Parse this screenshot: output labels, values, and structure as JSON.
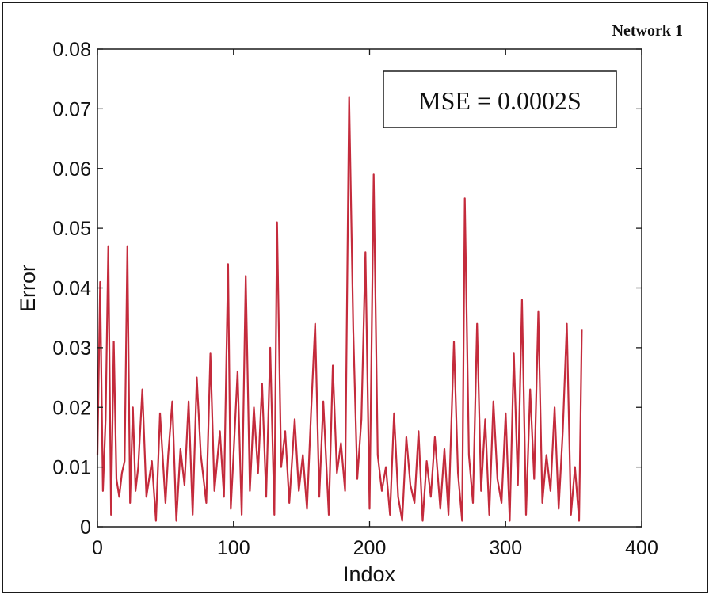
{
  "figure": {
    "label": "Network 1"
  },
  "chart_data": {
    "type": "line",
    "title": "",
    "xlabel": "Indox",
    "ylabel": "Error",
    "xlim": [
      0,
      400
    ],
    "ylim": [
      0,
      0.08
    ],
    "xticks": [
      0,
      100,
      200,
      300,
      400
    ],
    "xtick_labels": [
      "0",
      "100",
      "200",
      "300",
      "400"
    ],
    "yticks": [
      0,
      0.01,
      0.02,
      0.03,
      0.04,
      0.05,
      0.06,
      0.07,
      0.08
    ],
    "ytick_labels": [
      "0",
      "0.01",
      "0.02",
      "0.03",
      "0.04",
      "0.05",
      "0.06",
      "0.07",
      "0.08"
    ],
    "annotation": "MSE = 0.0002S",
    "grid": false,
    "line_color": "#c42b3c",
    "series": [
      {
        "x": [
          0,
          2,
          4,
          6,
          8,
          10,
          12,
          14,
          16,
          18,
          20,
          22,
          24,
          26,
          28,
          30,
          33,
          36,
          40,
          43,
          46,
          50,
          52,
          55,
          58,
          61,
          64,
          67,
          70,
          73,
          76,
          80,
          83,
          86,
          90,
          93,
          96,
          98,
          100,
          103,
          106,
          109,
          112,
          115,
          118,
          121,
          124,
          127,
          130,
          132,
          135,
          138,
          141,
          145,
          148,
          151,
          154,
          157,
          160,
          163,
          166,
          170,
          173,
          176,
          179,
          182,
          185,
          188,
          191,
          194,
          197,
          200,
          203,
          206,
          209,
          212,
          215,
          218,
          221,
          224,
          227,
          230,
          233,
          236,
          239,
          242,
          245,
          248,
          252,
          255,
          258,
          262,
          265,
          268,
          270,
          273,
          276,
          279,
          282,
          285,
          288,
          291,
          294,
          297,
          300,
          303,
          306,
          309,
          312,
          315,
          318,
          321,
          324,
          327,
          330,
          333,
          336,
          339,
          342,
          345,
          348,
          351,
          354,
          356
        ],
        "y": [
          0.012,
          0.041,
          0.006,
          0.018,
          0.047,
          0.002,
          0.031,
          0.008,
          0.005,
          0.009,
          0.011,
          0.047,
          0.004,
          0.02,
          0.006,
          0.01,
          0.023,
          0.005,
          0.011,
          0.001,
          0.019,
          0.004,
          0.012,
          0.021,
          0.001,
          0.013,
          0.007,
          0.021,
          0.002,
          0.025,
          0.012,
          0.004,
          0.029,
          0.006,
          0.016,
          0.005,
          0.044,
          0.003,
          0.012,
          0.026,
          0.002,
          0.042,
          0.006,
          0.02,
          0.009,
          0.024,
          0.005,
          0.03,
          0.002,
          0.051,
          0.01,
          0.016,
          0.004,
          0.018,
          0.006,
          0.012,
          0.003,
          0.019,
          0.034,
          0.005,
          0.021,
          0.002,
          0.027,
          0.009,
          0.014,
          0.006,
          0.072,
          0.033,
          0.008,
          0.018,
          0.046,
          0.003,
          0.059,
          0.012,
          0.006,
          0.01,
          0.002,
          0.019,
          0.005,
          0.001,
          0.015,
          0.007,
          0.004,
          0.016,
          0.001,
          0.011,
          0.005,
          0.015,
          0.003,
          0.013,
          0.002,
          0.031,
          0.009,
          0.001,
          0.055,
          0.012,
          0.004,
          0.034,
          0.006,
          0.018,
          0.002,
          0.021,
          0.008,
          0.004,
          0.019,
          0.001,
          0.029,
          0.007,
          0.038,
          0.002,
          0.023,
          0.008,
          0.036,
          0.004,
          0.012,
          0.006,
          0.02,
          0.003,
          0.016,
          0.034,
          0.002,
          0.01,
          0.001,
          0.033
        ]
      }
    ]
  }
}
